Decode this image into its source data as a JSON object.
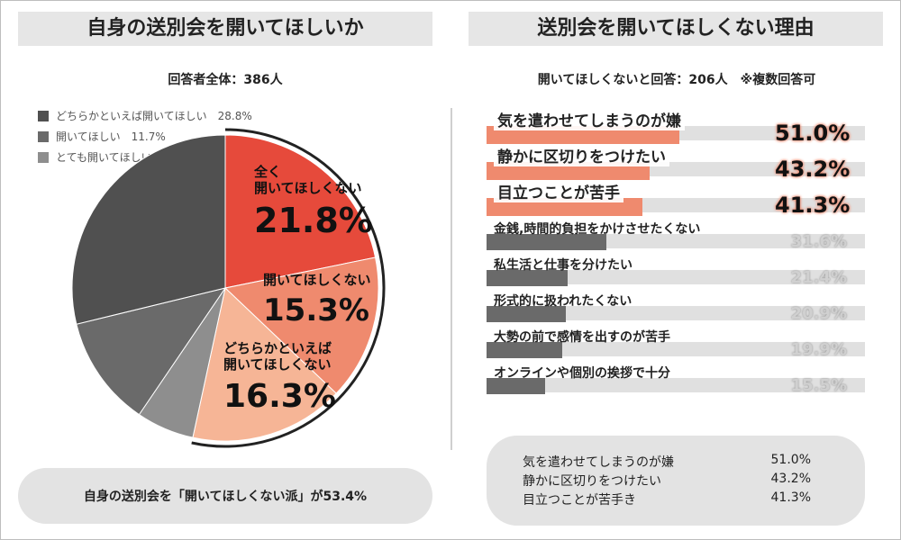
{
  "left": {
    "title": "自身の送別会を開いてほしいか",
    "subtitle": "回答者全体：386人",
    "bottom_summary": "自身の送別会を「開いてほしくない派」が53.4%"
  },
  "right": {
    "title": "送別会を開いてほしくない理由",
    "subtitle": "開いてほしくないと回答：206人　※複数回答可",
    "summary": [
      {
        "label": "気を遣わせてしまうのが嫌",
        "value": "51.0%"
      },
      {
        "label": "静かに区切りをつけたい",
        "value": "43.2%"
      },
      {
        "label": "目立つことが苦手き",
        "value": "41.3%"
      }
    ]
  },
  "colors": {
    "dark": "#505050",
    "mid": "#6a6a6a",
    "light_gray": "#8e8e8e",
    "red": "#e64a3b",
    "salmon": "#ef8a6e",
    "peach": "#f6b596",
    "bar_gray": "#e0e0e0"
  },
  "chart_data": [
    {
      "type": "pie",
      "legend_position": "top-left",
      "slices": [
        {
          "label": "全く開いてほしくない",
          "value": 21.8,
          "value_label": "21.8%",
          "color": "#e64a3b"
        },
        {
          "label": "開いてほしくない",
          "value": 15.3,
          "value_label": "15.3%",
          "color": "#ef8a6e"
        },
        {
          "label": "どちらかといえば開いてほしくない",
          "value": 16.3,
          "value_label": "16.3%",
          "color": "#f6b596"
        },
        {
          "label": "とても開いてほしい",
          "value": 6.1,
          "value_label": "6.1%",
          "color": "#8e8e8e"
        },
        {
          "label": "開いてほしい",
          "value": 11.7,
          "value_label": "11.7%",
          "color": "#6a6a6a"
        },
        {
          "label": "どちらかといえば開いてほしい",
          "value": 28.8,
          "value_label": "28.8%",
          "color": "#505050"
        }
      ],
      "inner_labels": [
        {
          "lines": [
            "全く",
            "開いてほしくない"
          ],
          "value_label": "21.8%"
        },
        {
          "lines": [
            "開いてほしくない"
          ],
          "value_label": "15.3%"
        },
        {
          "lines": [
            "どちらかといえば",
            "開いてほしくない"
          ],
          "value_label": "16.3%"
        }
      ],
      "legend": [
        {
          "label": "どちらかといえば開いてほしい",
          "value_label": "28.8%",
          "color": "#505050"
        },
        {
          "label": "開いてほしい",
          "value_label": "11.7%",
          "color": "#6a6a6a"
        },
        {
          "label": "とても開いてほしい",
          "value_label": "6.1%",
          "color": "#8e8e8e"
        }
      ]
    },
    {
      "type": "bar",
      "orientation": "horizontal",
      "xlim": [
        0,
        100
      ],
      "categories": [
        "気を遣わせてしまうのが嫌",
        "静かに区切りをつけたい",
        "目立つことが苦手",
        "金銭,時間的負担をかけさせたくない",
        "私生活と仕事を分けたい",
        "形式的に扱われたくない",
        "大勢の前で感情を出すのが苦手",
        "オンラインや個別の挨拶で十分"
      ],
      "values": [
        51.0,
        43.2,
        41.3,
        31.6,
        21.4,
        20.9,
        19.9,
        15.5
      ],
      "value_labels": [
        "51.0%",
        "43.2%",
        "41.3%",
        "31.6%",
        "21.4%",
        "20.9%",
        "19.9%",
        "15.5%"
      ],
      "highlight_count": 3
    }
  ]
}
